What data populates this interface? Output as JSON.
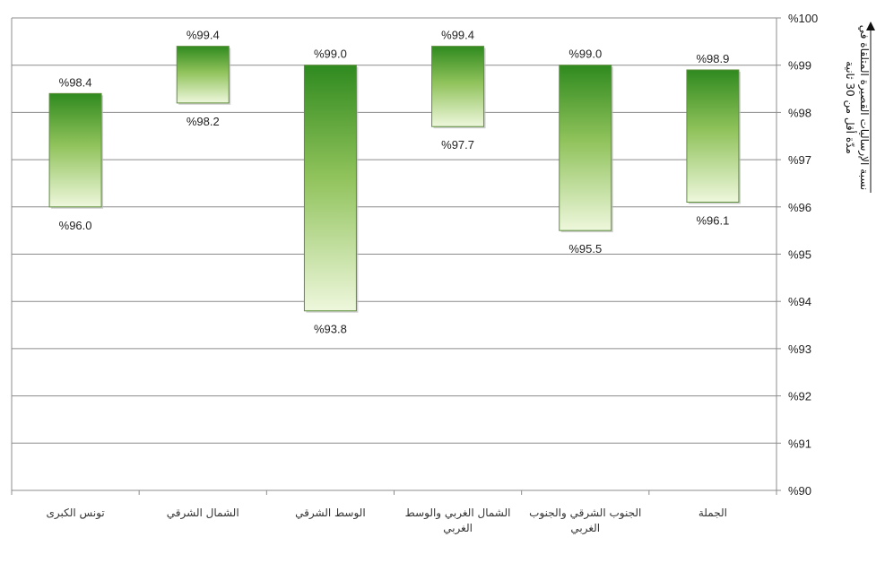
{
  "chart_data": {
    "type": "bar",
    "subtype": "floating-range",
    "categories": [
      "الجملة",
      "الجنوب الشرقي والجنوب الغربي",
      "الشمال الغربي والوسط الغربي",
      "الوسط الشرقي",
      "الشمال الشرقي",
      "تونس الكبرى"
    ],
    "category_lines": [
      [
        "الجملة"
      ],
      [
        "الجنوب الشرقي والجنوب",
        "الغربي"
      ],
      [
        "الشمال الغربي والوسط",
        "الغربي"
      ],
      [
        "الوسط الشرقي"
      ],
      [
        "الشمال الشرقي"
      ],
      [
        "تونس الكبرى"
      ]
    ],
    "series": [
      {
        "values_high": [
          98.9,
          99.0,
          99.4,
          99.0,
          99.4,
          98.4
        ],
        "values_low": [
          96.1,
          95.5,
          97.7,
          93.8,
          98.2,
          96.0
        ]
      }
    ],
    "high_labels": [
      "%98.9",
      "%99.0",
      "%99.4",
      "%99.0",
      "%99.4",
      "%98.4"
    ],
    "low_labels": [
      "%96.1",
      "%95.5",
      "%97.7",
      "%93.8",
      "%98.2",
      "%96.0"
    ],
    "ylim": [
      90,
      100
    ],
    "yticks": [
      90,
      91,
      92,
      93,
      94,
      95,
      96,
      97,
      98,
      99,
      100
    ],
    "ytick_labels": [
      "%90",
      "%91",
      "%92",
      "%93",
      "%94",
      "%95",
      "%96",
      "%97",
      "%98",
      "%99",
      "%100"
    ],
    "ylabel_lines": [
      "نسبة الإرساليات القصيرة المتلقاة في",
      "مدّة أقل من 30 ثانية"
    ],
    "grid": true,
    "yaxis_side": "right",
    "colors": {
      "bar_top": "#2f8a1f",
      "bar_mid": "#8fc25a",
      "bar_bottom": "#eef7dc",
      "grid": "#8c8c8c"
    }
  }
}
